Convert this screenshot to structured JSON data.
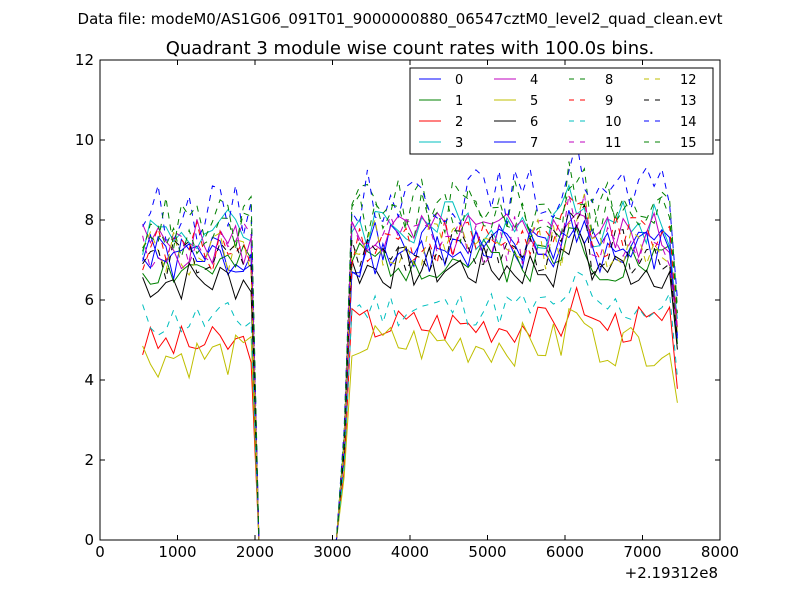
{
  "suptitle": "Data file: modeM0/AS1G06_091T01_9000000880_06547cztM0_level2_quad_clean.evt",
  "chart_data": {
    "type": "line",
    "title": "Quadrant 3 module wise count rates with 100.0s bins.",
    "xlabel": "",
    "ylabel": "",
    "x_offset_label": "+2.19312e8",
    "xlim": [
      0,
      8000
    ],
    "ylim": [
      0,
      12
    ],
    "xticks": [
      0,
      1000,
      2000,
      3000,
      4000,
      5000,
      6000,
      7000,
      8000
    ],
    "xtick_labels": [
      "0",
      "1000",
      "2000",
      "3000",
      "4000",
      "5000",
      "6000",
      "7000",
      "8000"
    ],
    "yticks": [
      0,
      2,
      4,
      6,
      8,
      10,
      12
    ],
    "ytick_labels": [
      "0",
      "2",
      "4",
      "6",
      "8",
      "10",
      "12"
    ],
    "legend_position": "top-right",
    "legend_columns": 4,
    "x_seg1": [
      550,
      1950
    ],
    "x_gap": [
      2050,
      3050
    ],
    "x_seg2": [
      3250,
      7450
    ],
    "bin_width": 100,
    "gap_value": 0,
    "series": [
      {
        "name": "0",
        "color": "#0000ff",
        "dash": "solid",
        "base1": 7.0,
        "base2": 7.3,
        "amp": 0.4,
        "seed": 1
      },
      {
        "name": "1",
        "color": "#008000",
        "dash": "solid",
        "base1": 6.8,
        "base2": 7.0,
        "amp": 0.35,
        "seed": 2
      },
      {
        "name": "2",
        "color": "#ff0000",
        "dash": "solid",
        "base1": 4.9,
        "base2": 5.4,
        "amp": 0.3,
        "seed": 3
      },
      {
        "name": "3",
        "color": "#00bfbf",
        "dash": "solid",
        "base1": 7.7,
        "base2": 7.9,
        "amp": 0.4,
        "seed": 4
      },
      {
        "name": "4",
        "color": "#bf00bf",
        "dash": "solid",
        "base1": 7.4,
        "base2": 7.6,
        "amp": 0.4,
        "seed": 5
      },
      {
        "name": "5",
        "color": "#bfbf00",
        "dash": "solid",
        "base1": 4.6,
        "base2": 4.9,
        "amp": 0.35,
        "seed": 6
      },
      {
        "name": "6",
        "color": "#000000",
        "dash": "solid",
        "base1": 6.5,
        "base2": 6.8,
        "amp": 0.35,
        "seed": 7
      },
      {
        "name": "7",
        "color": "#0000ff",
        "dash": "solid",
        "base1": 7.1,
        "base2": 7.2,
        "amp": 0.4,
        "seed": 8
      },
      {
        "name": "8",
        "color": "#008000",
        "dash": "dashed",
        "base1": 7.6,
        "base2": 8.3,
        "amp": 0.45,
        "seed": 9
      },
      {
        "name": "9",
        "color": "#ff0000",
        "dash": "dashed",
        "base1": 7.3,
        "base2": 7.5,
        "amp": 0.4,
        "seed": 10
      },
      {
        "name": "10",
        "color": "#00bfbf",
        "dash": "dashed",
        "base1": 5.5,
        "base2": 5.8,
        "amp": 0.3,
        "seed": 11
      },
      {
        "name": "11",
        "color": "#bf00bf",
        "dash": "dashed",
        "base1": 7.3,
        "base2": 7.5,
        "amp": 0.4,
        "seed": 12
      },
      {
        "name": "12",
        "color": "#bfbf00",
        "dash": "dashed",
        "base1": 7.2,
        "base2": 7.4,
        "amp": 0.4,
        "seed": 13
      },
      {
        "name": "13",
        "color": "#000000",
        "dash": "dashed",
        "base1": 7.0,
        "base2": 7.2,
        "amp": 0.35,
        "seed": 14
      },
      {
        "name": "14",
        "color": "#0000ff",
        "dash": "dashed",
        "base1": 8.2,
        "base2": 8.6,
        "amp": 0.45,
        "seed": 15
      },
      {
        "name": "15",
        "color": "#008000",
        "dash": "dashed",
        "base1": 7.9,
        "base2": 8.1,
        "amp": 0.45,
        "seed": 16
      }
    ]
  }
}
